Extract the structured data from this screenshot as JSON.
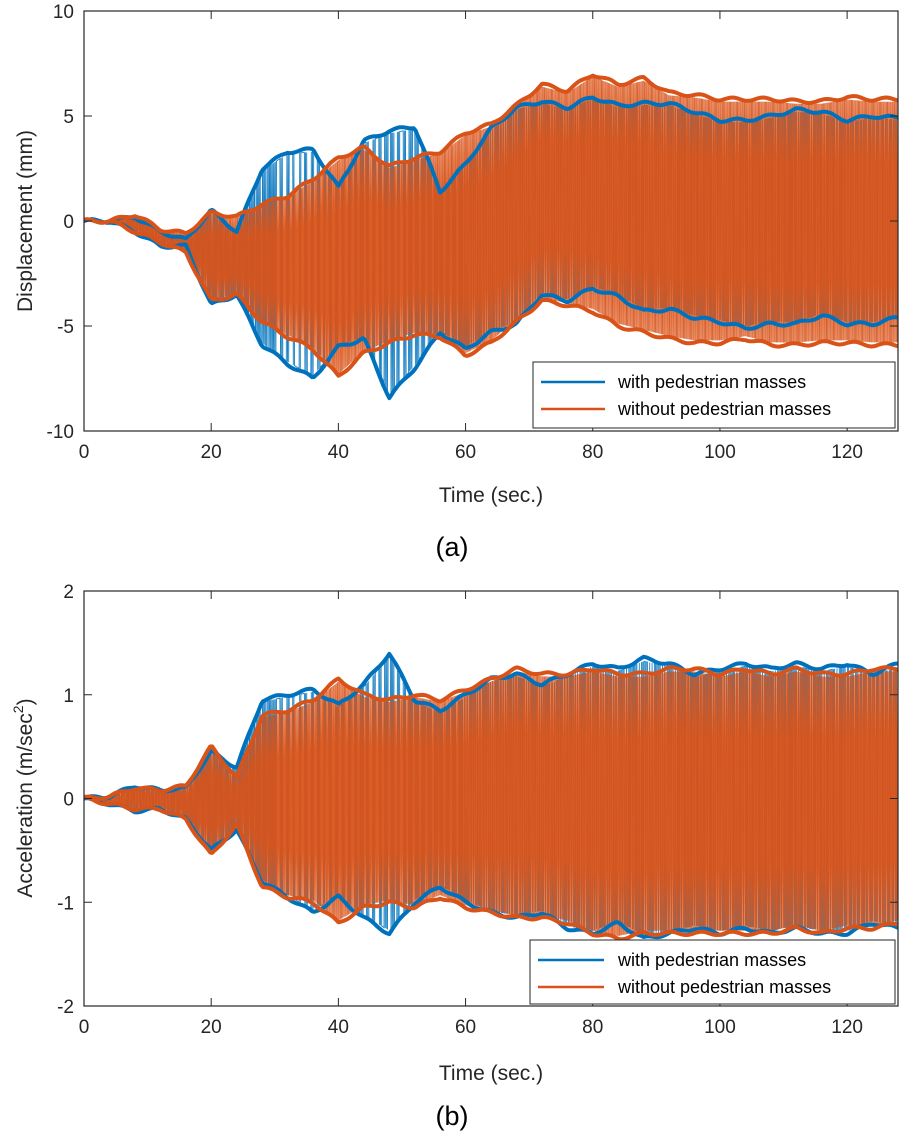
{
  "colors": {
    "series_a": "#0072BD",
    "series_b": "#D95319",
    "axis": "#262626"
  },
  "chart_data": [
    {
      "type": "line",
      "subfigure_label": "(a)",
      "xlabel": "Time (sec.)",
      "ylabel": "Displacement (mm)",
      "xlim": [
        0,
        128
      ],
      "ylim": [
        -10,
        10
      ],
      "xticks": [
        0,
        20,
        40,
        60,
        80,
        100,
        120
      ],
      "yticks": [
        -10,
        -5,
        0,
        5,
        10
      ],
      "grid": false,
      "legend_position": "bottom-right",
      "x": [
        0,
        4,
        8,
        12,
        16,
        20,
        24,
        28,
        32,
        36,
        40,
        44,
        48,
        52,
        56,
        60,
        64,
        68,
        72,
        76,
        80,
        84,
        88,
        92,
        96,
        100,
        104,
        108,
        112,
        116,
        120,
        124,
        128
      ],
      "series": [
        {
          "name": "with pedestrian masses",
          "upper": [
            0,
            0,
            0.2,
            -0.5,
            -0.9,
            0.5,
            -0.5,
            2.5,
            3.3,
            3.4,
            1.6,
            3.8,
            4.3,
            4.5,
            1.4,
            2.7,
            4.4,
            5.4,
            5.7,
            5.4,
            5.9,
            5.5,
            5.6,
            5.6,
            5.2,
            4.8,
            4.8,
            5.0,
            5.3,
            5.2,
            4.8,
            5.0,
            4.9
          ],
          "lower": [
            0,
            0,
            -0.5,
            -1.2,
            -1.2,
            -4.0,
            -3.5,
            -5.9,
            -6.8,
            -7.5,
            -6.0,
            -5.6,
            -8.4,
            -7.0,
            -5.3,
            -6.1,
            -5.3,
            -4.9,
            -3.5,
            -3.8,
            -3.2,
            -3.6,
            -4.3,
            -4.2,
            -4.6,
            -4.8,
            -5.1,
            -4.9,
            -4.9,
            -4.5,
            -4.9,
            -4.9,
            -4.6
          ]
        },
        {
          "name": "without pedestrian masses",
          "upper": [
            0,
            0,
            0.3,
            -0.4,
            -0.6,
            0.4,
            0.2,
            0.8,
            1.2,
            2.0,
            3.0,
            3.5,
            2.6,
            3.0,
            3.3,
            4.2,
            4.6,
            5.5,
            6.5,
            6.2,
            7.0,
            6.5,
            6.8,
            6.1,
            6.0,
            5.8,
            5.8,
            5.8,
            5.7,
            5.7,
            5.9,
            5.8,
            5.8
          ],
          "lower": [
            0,
            0,
            -0.5,
            -1.0,
            -1.5,
            -3.8,
            -3.5,
            -4.8,
            -5.5,
            -6.1,
            -7.4,
            -6.3,
            -5.8,
            -5.4,
            -5.5,
            -6.4,
            -5.8,
            -4.8,
            -3.8,
            -4.0,
            -4.3,
            -5.0,
            -5.3,
            -5.6,
            -5.8,
            -5.8,
            -5.6,
            -5.9,
            -5.9,
            -5.8,
            -5.8,
            -5.9,
            -5.9
          ]
        }
      ]
    },
    {
      "type": "line",
      "subfigure_label": "(b)",
      "xlabel": "Time (sec.)",
      "ylabel_main": "Acceleration (m/sec",
      "ylabel_sup": "2",
      "ylabel_end": ")",
      "xlim": [
        0,
        128
      ],
      "ylim": [
        -2,
        2
      ],
      "xticks": [
        0,
        20,
        40,
        60,
        80,
        100,
        120
      ],
      "yticks": [
        -2,
        -1,
        0,
        1,
        2
      ],
      "grid": false,
      "legend_position": "bottom-right",
      "x": [
        0,
        4,
        8,
        12,
        16,
        20,
        24,
        28,
        32,
        36,
        40,
        44,
        48,
        52,
        56,
        60,
        64,
        68,
        72,
        76,
        80,
        84,
        88,
        92,
        96,
        100,
        104,
        108,
        112,
        116,
        120,
        124,
        128
      ],
      "series": [
        {
          "name": "with pedestrian masses",
          "upper": [
            0,
            0.02,
            0.12,
            0.08,
            0.1,
            0.45,
            0.3,
            0.95,
            1.0,
            1.05,
            0.9,
            1.1,
            1.4,
            0.95,
            0.85,
            1.0,
            1.15,
            1.2,
            1.1,
            1.2,
            1.3,
            1.25,
            1.35,
            1.3,
            1.2,
            1.25,
            1.3,
            1.25,
            1.3,
            1.25,
            1.3,
            1.2,
            1.3
          ],
          "lower": [
            0,
            -0.05,
            -0.12,
            -0.1,
            -0.2,
            -0.5,
            -0.3,
            -0.8,
            -0.95,
            -1.1,
            -0.95,
            -1.15,
            -1.3,
            -1.0,
            -0.85,
            -1.0,
            -1.1,
            -1.15,
            -1.1,
            -1.25,
            -1.3,
            -1.2,
            -1.35,
            -1.3,
            -1.25,
            -1.3,
            -1.25,
            -1.3,
            -1.25,
            -1.3,
            -1.3,
            -1.2,
            -1.25
          ]
        },
        {
          "name": "without pedestrian masses",
          "upper": [
            0,
            0.02,
            0.1,
            0.08,
            0.12,
            0.5,
            0.2,
            0.8,
            0.85,
            0.95,
            1.15,
            1.0,
            0.95,
            1.0,
            0.95,
            1.05,
            1.15,
            1.25,
            1.2,
            1.2,
            1.25,
            1.2,
            1.2,
            1.25,
            1.25,
            1.2,
            1.25,
            1.2,
            1.25,
            1.2,
            1.2,
            1.25,
            1.25
          ],
          "lower": [
            0,
            -0.05,
            -0.1,
            -0.1,
            -0.2,
            -0.55,
            -0.25,
            -0.85,
            -0.95,
            -1.0,
            -1.2,
            -1.05,
            -1.0,
            -1.05,
            -0.95,
            -1.05,
            -1.1,
            -1.15,
            -1.15,
            -1.2,
            -1.3,
            -1.35,
            -1.3,
            -1.3,
            -1.3,
            -1.3,
            -1.3,
            -1.3,
            -1.25,
            -1.3,
            -1.25,
            -1.25,
            -1.2
          ]
        }
      ]
    }
  ]
}
